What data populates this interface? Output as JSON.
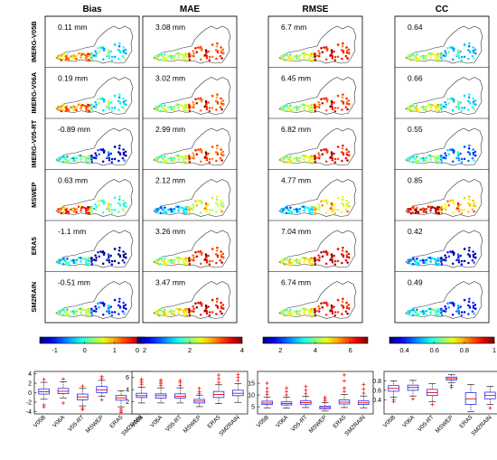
{
  "columns": [
    {
      "title": "Bias",
      "values": [
        "0.11 mm",
        "0.19 mm",
        "-0.89 mm",
        "0.63 mm",
        "-1.1 mm",
        "-0.51 mm"
      ],
      "colorbar": {
        "min": -1.5,
        "max": 2,
        "ticks": [
          "-1",
          "0",
          "1",
          "2"
        ],
        "tick_values": [
          -1,
          0,
          1,
          2
        ]
      },
      "boxplot": {
        "ylim": [
          -4.5,
          4.5
        ],
        "yticks": [
          -4,
          -2,
          0,
          2,
          4
        ]
      }
    },
    {
      "title": "MAE",
      "values": [
        "3.08 mm",
        "3.02 mm",
        "2.99 mm",
        "2.12 mm",
        "3.26 mm",
        "3.47 mm"
      ],
      "colorbar": {
        "min": 0,
        "max": 4,
        "ticks": [
          "0",
          "2",
          "4"
        ],
        "tick_values": [
          0,
          2,
          4
        ]
      },
      "boxplot": {
        "ylim": [
          0,
          7
        ],
        "yticks": [
          2,
          4,
          6
        ]
      }
    },
    {
      "title": "RMSE",
      "values": [
        "6.7 mm",
        "6.45 mm",
        "6.82 mm",
        "4.77 mm",
        "7.04 mm",
        "6.74 mm"
      ],
      "colorbar": {
        "min": 1,
        "max": 7,
        "ticks": [
          "2",
          "4",
          "6"
        ],
        "tick_values": [
          2,
          4,
          6
        ]
      },
      "boxplot": {
        "ylim": [
          2,
          20
        ],
        "yticks": [
          5,
          10,
          15
        ]
      }
    },
    {
      "title": "CC",
      "values": [
        "0.64",
        "0.66",
        "0.55",
        "0.85",
        "0.42",
        "0.49"
      ],
      "colorbar": {
        "min": 0.3,
        "max": 1,
        "ticks": [
          "0.4",
          "0.6",
          "0.8",
          "1"
        ],
        "tick_values": [
          0.4,
          0.6,
          0.8,
          1
        ]
      },
      "boxplot": {
        "ylim": [
          0.1,
          1.0
        ],
        "yticks": [
          0.4,
          0.6,
          0.8
        ]
      }
    }
  ],
  "rows": [
    "IMERG-V05B",
    "IMERG-V06A",
    "IMERG-V05-RT",
    "MSWEP",
    "ERA5",
    "SM2RAIN"
  ],
  "boxplot_categories": [
    "V05B",
    "V06A",
    "V05-RT",
    "MSWEP",
    "ERA5",
    "SM2RAIN"
  ],
  "chart_data": [
    {
      "type": "box",
      "title": "Bias",
      "categories": [
        "V05B",
        "V06A",
        "V05-RT",
        "MSWEP",
        "ERA5",
        "SM2RAIN"
      ],
      "series": [
        {
          "q1": -0.3,
          "median": 0.2,
          "q3": 0.8,
          "whisker_low": -1.4,
          "whisker_high": 2.2,
          "outliers": [
            -2.6,
            -3.0,
            2.8
          ]
        },
        {
          "q1": -0.2,
          "median": 0.3,
          "q3": 0.9,
          "whisker_low": -1.2,
          "whisker_high": 2.3,
          "outliers": [
            -2.2,
            2.9
          ]
        },
        {
          "q1": -1.5,
          "median": -0.9,
          "q3": -0.3,
          "whisker_low": -2.8,
          "whisker_high": 0.9,
          "outliers": [
            -3.3,
            -3.6,
            1.4
          ]
        },
        {
          "q1": 0.0,
          "median": 0.6,
          "q3": 1.3,
          "whisker_low": -0.8,
          "whisker_high": 2.6,
          "outliers": [
            3.0,
            3.4,
            -1.5
          ]
        },
        {
          "q1": -1.6,
          "median": -1.1,
          "q3": -0.6,
          "whisker_low": -3.0,
          "whisker_high": 0.4,
          "outliers": [
            -3.5,
            -3.9,
            -4.2
          ]
        },
        {
          "q1": -1.0,
          "median": -0.5,
          "q3": 0.0,
          "whisker_low": -2.0,
          "whisker_high": 1.2,
          "outliers": [
            -2.4,
            -2.8,
            -3.2
          ]
        }
      ]
    },
    {
      "type": "box",
      "title": "MAE",
      "categories": [
        "V05B",
        "V06A",
        "V05-RT",
        "MSWEP",
        "ERA5",
        "SM2RAIN"
      ],
      "series": [
        {
          "q1": 2.7,
          "median": 3.0,
          "q3": 3.4,
          "whisker_low": 1.8,
          "whisker_high": 4.4,
          "outliers": [
            4.8,
            5.1,
            5.4,
            5.7
          ]
        },
        {
          "q1": 2.6,
          "median": 3.0,
          "q3": 3.3,
          "whisker_low": 1.8,
          "whisker_high": 4.3,
          "outliers": [
            4.7,
            5.0,
            5.3,
            5.6
          ]
        },
        {
          "q1": 2.6,
          "median": 2.9,
          "q3": 3.3,
          "whisker_low": 1.8,
          "whisker_high": 4.3,
          "outliers": [
            4.7,
            5.2,
            5.5
          ]
        },
        {
          "q1": 1.8,
          "median": 2.1,
          "q3": 2.4,
          "whisker_low": 1.2,
          "whisker_high": 3.1,
          "outliers": [
            3.4,
            3.7,
            4.2
          ]
        },
        {
          "q1": 2.7,
          "median": 3.2,
          "q3": 3.7,
          "whisker_low": 1.7,
          "whisker_high": 4.8,
          "outliers": [
            5.2,
            5.8,
            6.4
          ]
        },
        {
          "q1": 3.0,
          "median": 3.4,
          "q3": 3.9,
          "whisker_low": 1.9,
          "whisker_high": 5.0,
          "outliers": [
            5.5,
            6.0,
            6.5
          ]
        }
      ]
    },
    {
      "type": "box",
      "title": "RMSE",
      "categories": [
        "V05B",
        "V06A",
        "V05-RT",
        "MSWEP",
        "ERA5",
        "SM2RAIN"
      ],
      "series": [
        {
          "q1": 6.0,
          "median": 6.6,
          "q3": 7.4,
          "whisker_low": 4.6,
          "whisker_high": 9.2,
          "outliers": [
            10.2,
            11.3,
            12.8,
            15.0
          ]
        },
        {
          "q1": 5.8,
          "median": 6.4,
          "q3": 7.1,
          "whisker_low": 4.5,
          "whisker_high": 9.0,
          "outliers": [
            10.0,
            11.5,
            13.0
          ]
        },
        {
          "q1": 6.1,
          "median": 6.8,
          "q3": 7.5,
          "whisker_low": 4.7,
          "whisker_high": 9.4,
          "outliers": [
            10.5,
            12.0,
            13.6
          ]
        },
        {
          "q1": 4.2,
          "median": 4.7,
          "q3": 5.3,
          "whisker_low": 3.2,
          "whisker_high": 6.8,
          "outliers": [
            7.5,
            8.3,
            9.0
          ]
        },
        {
          "q1": 6.2,
          "median": 7.0,
          "q3": 7.9,
          "whisker_low": 4.7,
          "whisker_high": 10.2,
          "outliers": [
            11.5,
            13.0,
            16.0,
            18.5
          ]
        },
        {
          "q1": 6.0,
          "median": 6.7,
          "q3": 7.5,
          "whisker_low": 4.6,
          "whisker_high": 9.6,
          "outliers": [
            10.8,
            12.5,
            14.5
          ]
        }
      ]
    },
    {
      "type": "box",
      "title": "CC",
      "categories": [
        "V05B",
        "V06A",
        "V05-RT",
        "MSWEP",
        "ERA5",
        "SM2RAIN"
      ],
      "series": [
        {
          "q1": 0.58,
          "median": 0.64,
          "q3": 0.7,
          "whisker_low": 0.45,
          "whisker_high": 0.8,
          "outliers": [
            0.4,
            0.36
          ]
        },
        {
          "q1": 0.6,
          "median": 0.66,
          "q3": 0.71,
          "whisker_low": 0.48,
          "whisker_high": 0.81,
          "outliers": [
            0.42
          ]
        },
        {
          "q1": 0.49,
          "median": 0.55,
          "q3": 0.62,
          "whisker_low": 0.36,
          "whisker_high": 0.74,
          "outliers": [
            0.3
          ]
        },
        {
          "q1": 0.82,
          "median": 0.85,
          "q3": 0.88,
          "whisker_low": 0.76,
          "whisker_high": 0.93,
          "outliers": [
            0.7,
            0.66
          ]
        },
        {
          "q1": 0.3,
          "median": 0.42,
          "q3": 0.55,
          "whisker_low": 0.15,
          "whisker_high": 0.72,
          "outliers": []
        },
        {
          "q1": 0.42,
          "median": 0.49,
          "q3": 0.56,
          "whisker_low": 0.3,
          "whisker_high": 0.68,
          "outliers": [
            0.22
          ]
        }
      ]
    }
  ]
}
